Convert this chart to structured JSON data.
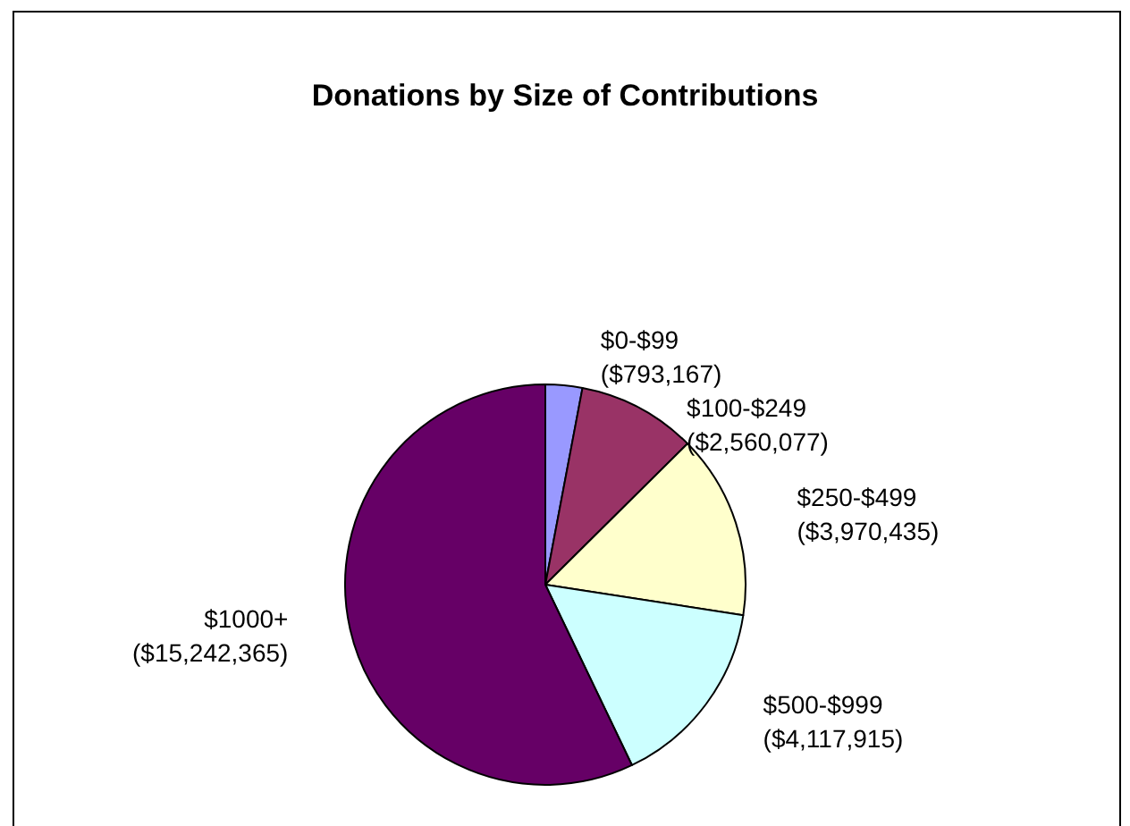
{
  "chart_data": {
    "type": "pie",
    "title": "Donations by Size of Contributions",
    "categories": [
      "$0-$99",
      "$100-$249",
      "$250-$499",
      "$500-$999",
      "$1000+"
    ],
    "values": [
      793167,
      2560077,
      3970435,
      4117915,
      15242365
    ],
    "value_labels": [
      "($793,167)",
      "($2,560,077)",
      "($3,970,435)",
      "($4,117,915)",
      "($15,242,365)"
    ],
    "colors": [
      "#9999ff",
      "#993366",
      "#ffffcc",
      "#ccffff",
      "#660066"
    ],
    "legend": false
  }
}
